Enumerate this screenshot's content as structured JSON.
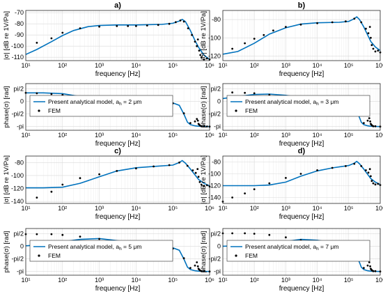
{
  "panels": [
    {
      "panel_label": "a)",
      "mag_ylabel": "|σ| [dB re 1V/Pa]",
      "mag_yticks": [
        -110,
        -100,
        -90,
        -80,
        -70
      ],
      "mag_ylim": [
        -113,
        -68
      ],
      "phase_ylabel": "phase(σ) [rad]",
      "phase_yticks": [
        "-pi",
        "-pi/2",
        "0",
        "pi/2"
      ],
      "phase_ylim": [
        -3.6,
        2.2
      ],
      "xlabel": "frequency [Hz]",
      "xticks": [
        "10¹",
        "10²",
        "10³",
        "10⁴",
        "10⁵",
        "10⁶"
      ],
      "legend": {
        "line": "Present analytical model, a",
        "sub": "h",
        "value": " = 2 μm",
        "points": "FEM"
      }
    },
    {
      "panel_label": "b)",
      "mag_ylabel": "|σ| [dB re 1V/Pa]",
      "mag_yticks": [
        -120,
        -100,
        -80
      ],
      "mag_ylim": [
        -125,
        -70
      ],
      "phase_ylabel": "phase(σ) [rad]",
      "phase_yticks": [
        "-pi",
        "-pi/2",
        "0",
        "pi/2"
      ],
      "phase_ylim": [
        -3.6,
        2.2
      ],
      "xlabel": "frequency [Hz]",
      "xticks": [
        "10¹",
        "10²",
        "10³",
        "10⁴",
        "10⁵",
        "10⁶"
      ],
      "legend": {
        "line": "Present analytical model, a",
        "sub": "h",
        "value": " = 3 μm",
        "points": "FEM"
      }
    },
    {
      "panel_label": "c)",
      "mag_ylabel": "|σ| [dB re 1V/Pa]",
      "mag_yticks": [
        -140,
        -120,
        -100,
        -80
      ],
      "mag_ylim": [
        -143,
        -70
      ],
      "phase_ylabel": "phase(σ) [rad]",
      "phase_yticks": [
        "-pi",
        "-pi/2",
        "0",
        "pi/2"
      ],
      "phase_ylim": [
        -3.6,
        2.2
      ],
      "xlabel": "frequency [Hz]",
      "xticks": [
        "10¹",
        "10²",
        "10³",
        "10⁴",
        "10⁵",
        "10⁶"
      ],
      "legend": {
        "line": "Present analytical model, a",
        "sub": "h",
        "value": " = 5 μm",
        "points": "FEM"
      }
    },
    {
      "panel_label": "d)",
      "mag_ylabel": "|σ| [dB re 1V/Pa]",
      "mag_yticks": [
        -140,
        -120,
        -100,
        -80
      ],
      "mag_ylim": [
        -150,
        -70
      ],
      "phase_ylabel": "phase(σ) [rad]",
      "phase_yticks": [
        "-pi",
        "-pi/2",
        "0",
        "pi/2"
      ],
      "phase_ylim": [
        -3.6,
        2.2
      ],
      "xlabel": "frequency [Hz]",
      "xticks": [
        "10¹",
        "10²",
        "10³",
        "10⁴",
        "10⁵",
        "10⁶"
      ],
      "legend": {
        "line": "Present analytical model, a",
        "sub": "h",
        "value": " = 7 μm",
        "points": "FEM"
      }
    }
  ],
  "colors": {
    "line": "#0072BD",
    "points": "#000000",
    "grid": "#d9d9d9",
    "axis": "#262626"
  },
  "chart_data": [
    {
      "panel": "a",
      "type": "line",
      "x_scale": "log",
      "xlim": [
        10,
        1000000
      ],
      "magnitude": {
        "ylim": [
          -113,
          -68
        ],
        "grid": true,
        "series": [
          {
            "name": "Present analytical model",
            "x": [
              10,
              20,
              50,
              100,
              200,
              500,
              1000,
              3000,
              10000,
              50000,
              100000,
              150000,
              180000,
              220000,
              300000,
              400000,
              500000,
              700000,
              1000000
            ],
            "y": [
              -107.5,
              -103,
              -96,
              -90.5,
              -86,
              -82.5,
              -81.5,
              -81,
              -81,
              -80.5,
              -79.5,
              -77.5,
              -76,
              -78,
              -86,
              -95,
              -101,
              -108,
              -112
            ]
          },
          {
            "name": "FEM",
            "x": [
              20,
              50,
              100,
              300,
              1000,
              3000,
              6000,
              10000,
              20000,
              40000,
              80000,
              120000,
              160000,
              200000,
              260000,
              330000,
              400000,
              450000,
              480000,
              520000,
              560000,
              600000,
              700000,
              850000,
              1000000
            ],
            "y": [
              -97,
              -93,
              -88,
              -84,
              -82.5,
              -82,
              -82,
              -82,
              -81.5,
              -81,
              -80,
              -78.5,
              -77,
              -78,
              -84,
              -90,
              -96,
              -100,
              -94,
              -104,
              -108,
              -110,
              -112,
              -111,
              -112
            ]
          }
        ]
      },
      "phase": {
        "ylim": [
          -3.6,
          2.2
        ],
        "yunit": "rad",
        "series": [
          {
            "name": "Present analytical model",
            "x": [
              10,
              30,
              100,
              300,
              1000,
              3000,
              10000,
              30000,
              100000,
              150000,
              200000,
              250000,
              300000,
              400000,
              500000,
              700000,
              1000000
            ],
            "y": [
              1.05,
              1.05,
              0.95,
              0.6,
              0.3,
              0.12,
              0.05,
              0.0,
              -0.2,
              -0.5,
              -1.6,
              -2.6,
              -2.9,
              -3.05,
              -3.1,
              -3.12,
              -3.14
            ]
          },
          {
            "name": "FEM",
            "x": [
              10,
              20,
              50,
              100,
              300,
              1000,
              3000,
              10000,
              30000,
              100000,
              200000,
              300000,
              400000,
              450000,
              480000,
              500000,
              520000,
              550000,
              600000,
              700000,
              850000,
              1000000
            ],
            "y": [
              1.05,
              1.0,
              0.9,
              0.8,
              0.55,
              0.3,
              0.12,
              0.05,
              0.0,
              -0.25,
              -1.5,
              -2.7,
              -2.5,
              -2.2,
              -2.4,
              -2.8,
              -2.9,
              -3.0,
              -3.1,
              -3.1,
              -3.12,
              -3.14
            ]
          }
        ]
      }
    },
    {
      "panel": "b",
      "type": "line",
      "x_scale": "log",
      "xlim": [
        10,
        1000000
      ],
      "magnitude": {
        "ylim": [
          -125,
          -70
        ],
        "grid": true,
        "series": [
          {
            "name": "Present analytical model",
            "x": [
              10,
              30,
              100,
              300,
              1000,
              3000,
              10000,
              50000,
              100000,
              150000,
              180000,
              220000,
              300000,
              400000,
              500000,
              700000,
              1000000
            ],
            "y": [
              -118,
              -115,
              -106,
              -96,
              -89,
              -85,
              -83.5,
              -83,
              -82,
              -79,
              -77,
              -80,
              -88,
              -97,
              -104,
              -110,
              -114
            ]
          },
          {
            "name": "FEM",
            "x": [
              20,
              50,
              100,
              200,
              400,
              1000,
              3000,
              10000,
              30000,
              80000,
              150000,
              250000,
              350000,
              420000,
              470000,
              500000,
              540000,
              600000,
              700000,
              850000,
              1000000
            ],
            "y": [
              -112,
              -106,
              -101,
              -97,
              -92,
              -88,
              -85.5,
              -84,
              -83,
              -82,
              -79,
              -83,
              -90,
              -95,
              -88,
              -100,
              -108,
              -112,
              -115,
              -114,
              -116
            ]
          }
        ]
      },
      "phase": {
        "ylim": [
          -3.6,
          2.2
        ],
        "yunit": "rad",
        "series": [
          {
            "name": "Present analytical model",
            "x": [
              10,
              30,
              100,
              300,
              1000,
              3000,
              10000,
              30000,
              100000,
              150000,
              200000,
              250000,
              300000,
              400000,
              500000,
              700000,
              1000000
            ],
            "y": [
              0.35,
              0.6,
              0.85,
              0.9,
              0.75,
              0.45,
              0.2,
              0.05,
              -0.2,
              -0.5,
              -1.6,
              -2.6,
              -2.9,
              -3.05,
              -3.1,
              -3.12,
              -3.14
            ]
          },
          {
            "name": "FEM",
            "x": [
              20,
              50,
              100,
              300,
              1000,
              3000,
              10000,
              30000,
              100000,
              200000,
              300000,
              400000,
              450000,
              480000,
              500000,
              520000,
              550000,
              600000,
              700000,
              1000000
            ],
            "y": [
              1.1,
              1.05,
              1.0,
              0.8,
              0.45,
              0.2,
              0.08,
              0.0,
              -0.25,
              -1.5,
              -2.7,
              -2.4,
              -2.1,
              -2.5,
              -2.8,
              -2.9,
              -3.0,
              -3.1,
              -3.1,
              -3.14
            ]
          }
        ]
      }
    },
    {
      "panel": "c",
      "type": "line",
      "x_scale": "log",
      "xlim": [
        10,
        1000000
      ],
      "magnitude": {
        "ylim": [
          -143,
          -70
        ],
        "grid": true,
        "series": [
          {
            "name": "Present analytical model",
            "x": [
              10,
              30,
              100,
              300,
              1000,
              3000,
              10000,
              30000,
              100000,
              150000,
              180000,
              220000,
              300000,
              400000,
              500000,
              700000,
              1000000
            ],
            "y": [
              -119,
              -119,
              -118,
              -112,
              -102,
              -93,
              -88,
              -86,
              -84,
              -80,
              -77,
              -81,
              -90,
              -99,
              -106,
              -112,
              -116
            ]
          },
          {
            "name": "FEM",
            "x": [
              20,
              50,
              100,
              300,
              1000,
              3000,
              10000,
              30000,
              80000,
              150000,
              250000,
              350000,
              420000,
              470000,
              500000,
              540000,
              600000,
              700000,
              850000,
              1000000
            ],
            "y": [
              -134,
              -125,
              -114,
              -104,
              -98,
              -93,
              -89,
              -86,
              -84,
              -80,
              -85,
              -92,
              -96,
              -90,
              -102,
              -110,
              -114,
              -116,
              -115,
              -117
            ]
          }
        ]
      },
      "phase": {
        "ylim": [
          -3.6,
          2.2
        ],
        "yunit": "rad",
        "series": [
          {
            "name": "Present analytical model",
            "x": [
              10,
              30,
              100,
              300,
              1000,
              3000,
              10000,
              30000,
              100000,
              150000,
              200000,
              250000,
              300000,
              400000,
              500000,
              700000,
              1000000
            ],
            "y": [
              0.05,
              0.2,
              0.55,
              0.85,
              0.95,
              0.7,
              0.35,
              0.1,
              -0.2,
              -0.5,
              -1.6,
              -2.6,
              -2.9,
              -3.05,
              -3.1,
              -3.12,
              -3.14
            ]
          },
          {
            "name": "FEM",
            "x": [
              10,
              20,
              50,
              100,
              300,
              1000,
              3000,
              10000,
              30000,
              100000,
              200000,
              300000,
              400000,
              450000,
              480000,
              500000,
              520000,
              550000,
              600000,
              700000,
              1000000
            ],
            "y": [
              1.5,
              1.5,
              1.5,
              1.4,
              1.2,
              0.9,
              0.55,
              0.2,
              0.0,
              -0.3,
              -1.5,
              -2.7,
              -2.4,
              -2.0,
              -2.5,
              -2.8,
              -2.9,
              -3.0,
              -3.1,
              -3.1,
              -3.14
            ]
          }
        ]
      }
    },
    {
      "panel": "d",
      "type": "line",
      "x_scale": "log",
      "xlim": [
        10,
        1000000
      ],
      "magnitude": {
        "ylim": [
          -150,
          -70
        ],
        "grid": true,
        "series": [
          {
            "name": "Present analytical model",
            "x": [
              10,
              30,
              100,
              300,
              1000,
              3000,
              10000,
              30000,
              100000,
              150000,
              180000,
              220000,
              300000,
              400000,
              500000,
              700000,
              1000000
            ],
            "y": [
              -120,
              -120,
              -120,
              -119,
              -114,
              -104,
              -95,
              -90,
              -86,
              -82,
              -79,
              -83,
              -92,
              -101,
              -108,
              -114,
              -118
            ]
          },
          {
            "name": "FEM",
            "x": [
              10,
              20,
              50,
              100,
              300,
              1000,
              3000,
              10000,
              30000,
              80000,
              150000,
              250000,
              350000,
              420000,
              470000,
              500000,
              540000,
              600000,
              700000,
              850000,
              1000000
            ],
            "y": [
              -147,
              -140,
              -133,
              -126,
              -116,
              -107,
              -100,
              -94,
              -90,
              -87,
              -83,
              -87,
              -94,
              -98,
              -92,
              -104,
              -112,
              -116,
              -118,
              -117,
              -119
            ]
          }
        ]
      },
      "phase": {
        "ylim": [
          -3.6,
          2.2
        ],
        "yunit": "rad",
        "series": [
          {
            "name": "Present analytical model",
            "x": [
              10,
              100,
              300,
              1000,
              3000,
              10000,
              30000,
              60000,
              100000,
              150000,
              200000,
              250000,
              300000,
              400000,
              500000,
              700000,
              1000000
            ],
            "y": [
              0.0,
              0.1,
              0.3,
              0.6,
              0.85,
              0.75,
              0.45,
              0.2,
              -0.1,
              -0.5,
              -1.6,
              -2.6,
              -2.9,
              -3.05,
              -3.1,
              -3.12,
              -3.14
            ]
          },
          {
            "name": "FEM",
            "x": [
              10,
              20,
              50,
              100,
              300,
              1000,
              3000,
              10000,
              30000,
              100000,
              200000,
              300000,
              400000,
              450000,
              480000,
              500000,
              520000,
              550000,
              600000,
              700000,
              1000000
            ],
            "y": [
              1.6,
              1.6,
              1.6,
              1.55,
              1.4,
              1.1,
              0.75,
              0.35,
              0.05,
              -0.3,
              -1.5,
              -2.7,
              -2.4,
              -2.0,
              -2.5,
              -2.8,
              -2.9,
              -3.0,
              -3.1,
              -3.1,
              -3.14
            ]
          }
        ]
      }
    }
  ]
}
